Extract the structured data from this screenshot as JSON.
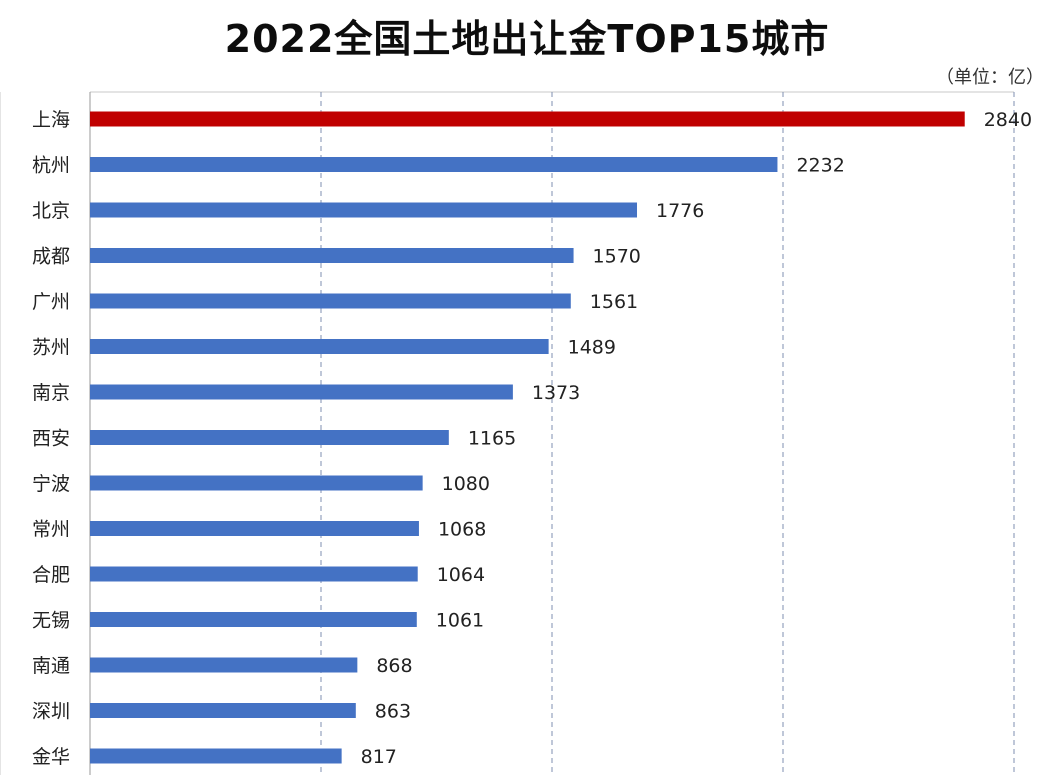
{
  "chart_data": {
    "type": "bar",
    "orientation": "horizontal",
    "title": "2022全国土地出让金TOP15城市",
    "unit_note": "（单位：亿）",
    "categories": [
      "上海",
      "杭州",
      "北京",
      "成都",
      "广州",
      "苏州",
      "南京",
      "西安",
      "宁波",
      "常州",
      "合肥",
      "无锡",
      "南通",
      "深圳",
      "金华"
    ],
    "values": [
      2840,
      2232,
      1776,
      1570,
      1561,
      1489,
      1373,
      1165,
      1080,
      1068,
      1064,
      1061,
      868,
      863,
      817
    ],
    "xlim": [
      0,
      3000
    ],
    "x_gridlines": [
      750,
      1500,
      2250,
      3000
    ],
    "grid": "vertical dashed",
    "colors": {
      "highlight": "#c00000",
      "bar": "#4472c4",
      "grid": "#7f8fb0"
    },
    "highlight_index": 0
  }
}
